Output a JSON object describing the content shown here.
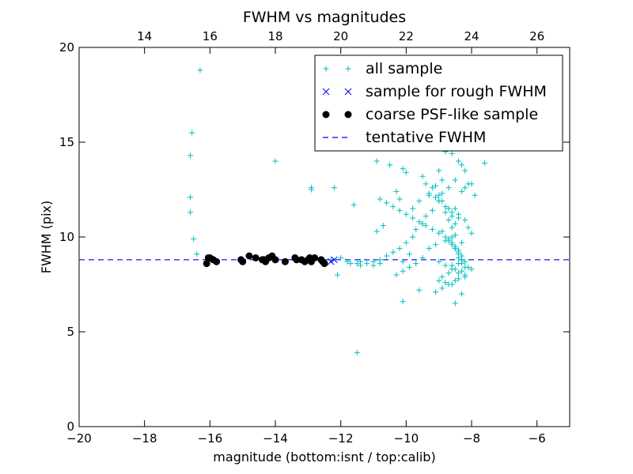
{
  "chart_data": {
    "type": "scatter",
    "title": "FWHM vs magnitudes",
    "xlabel": "magnitude (bottom:isnt / top:calib)",
    "ylabel": "FWHM (pix)",
    "xlim": [
      -20,
      -5
    ],
    "ylim": [
      0,
      20
    ],
    "xticks": [
      "−20",
      "−18",
      "−16",
      "−14",
      "−12",
      "−10",
      "−8",
      "−6"
    ],
    "yticks": [
      "0",
      "5",
      "10",
      "15",
      "20"
    ],
    "top_axis": {
      "offset": 32.0,
      "ticks": [
        "14",
        "16",
        "18",
        "20",
        "22",
        "24",
        "26"
      ]
    },
    "grid": false,
    "legend_position": "upper-right",
    "series": [
      {
        "name": "all sample",
        "marker": "plus",
        "color": "#00bfbf",
        "x": [
          -16.3,
          -16.55,
          -16.6,
          -16.6,
          -16.6,
          -16.5,
          -16.4,
          -14.0,
          -12.9,
          -12.9,
          -12.2,
          -11.6,
          -11.5,
          -12.1,
          -11.7,
          -11.4,
          -11.0,
          -10.8,
          -10.9,
          -10.5,
          -10.1,
          -10.0,
          -10.3,
          -10.2,
          -9.8,
          -9.5,
          -9.4,
          -9.0,
          -8.9,
          -9.3,
          -9.6,
          -9.1,
          -8.8,
          -8.7,
          -8.6,
          -8.4,
          -8.3,
          -8.2,
          -8.0,
          -7.9,
          -7.6,
          -8.5,
          -8.7,
          -8.9,
          -9.0,
          -9.2,
          -9.4,
          -9.5,
          -9.7,
          -9.8,
          -10.0,
          -10.2,
          -10.4,
          -10.6,
          -10.8,
          -11.0,
          -11.2,
          -11.4,
          -10.9,
          -10.7,
          -8.5,
          -8.4,
          -8.2,
          -8.1,
          -8.0,
          -8.6,
          -8.8,
          -9.1,
          -9.3,
          -9.9,
          -11.8,
          -12.0,
          -12.3,
          -10.1,
          -9.6,
          -8.3,
          -8.5,
          -8.6,
          -8.4,
          -8.2,
          -8.3,
          -8.5,
          -8.7,
          -8.9,
          -9.0,
          -8.8,
          -8.6,
          -8.4,
          -8.2,
          -8.1,
          -8.0,
          -8.3,
          -8.4,
          -8.5,
          -8.6,
          -8.7,
          -8.8,
          -9.0,
          -9.2,
          -9.4,
          -9.6,
          -9.8,
          -10.0,
          -10.2,
          -10.4,
          -10.6,
          -10.8,
          -8.3,
          -8.2,
          -8.1,
          -8.4,
          -8.6,
          -8.8,
          -9.0,
          -9.1,
          -9.3,
          -8.5,
          -8.7,
          -8.9,
          -8.4,
          -8.3,
          -8.2,
          -8.5,
          -8.6,
          -8.7,
          -8.9,
          -9.0,
          -9.2,
          -8.4,
          -8.3,
          -8.5,
          -8.6,
          -8.7,
          -8.8,
          -9.5,
          -9.7,
          -9.9,
          -10.1,
          -10.3,
          -9.0,
          -8.8,
          -8.6,
          -8.4,
          -8.2,
          -8.5,
          -8.7,
          -8.9,
          -9.1,
          -8.3,
          -8.4,
          -8.5,
          -8.6,
          -10.1,
          -11.5
        ],
        "y": [
          18.8,
          15.5,
          14.3,
          12.1,
          11.3,
          9.9,
          9.1,
          14.0,
          12.5,
          12.6,
          12.6,
          11.7,
          3.9,
          8.0,
          8.6,
          8.7,
          8.5,
          8.6,
          14.0,
          13.8,
          13.6,
          13.4,
          12.4,
          12.0,
          11.5,
          13.2,
          12.8,
          13.5,
          13.0,
          12.2,
          11.9,
          12.7,
          14.5,
          14.7,
          14.4,
          14.0,
          13.8,
          13.5,
          12.8,
          12.2,
          13.9,
          13.0,
          12.6,
          12.3,
          11.9,
          11.4,
          11.1,
          10.7,
          10.4,
          10.0,
          9.7,
          9.4,
          9.2,
          9.0,
          8.8,
          8.7,
          8.6,
          8.5,
          10.3,
          10.6,
          11.5,
          11.2,
          10.9,
          10.5,
          10.2,
          10.0,
          9.8,
          9.6,
          9.4,
          9.1,
          8.7,
          8.9,
          8.8,
          6.6,
          7.2,
          7.0,
          6.5,
          7.5,
          7.8,
          8.0,
          8.2,
          8.3,
          8.1,
          7.9,
          7.7,
          7.6,
          8.5,
          8.6,
          8.7,
          8.4,
          8.3,
          9.0,
          9.2,
          9.4,
          9.6,
          9.8,
          10.0,
          10.2,
          10.4,
          10.6,
          10.8,
          11.0,
          11.2,
          11.4,
          11.6,
          11.8,
          12.0,
          12.4,
          12.6,
          12.8,
          11.0,
          11.3,
          11.6,
          11.9,
          12.1,
          12.3,
          9.5,
          9.9,
          10.3,
          8.9,
          8.6,
          8.4,
          10.7,
          11.1,
          11.5,
          11.9,
          12.2,
          12.6,
          9.3,
          9.7,
          10.1,
          10.5,
          10.9,
          11.3,
          8.9,
          8.6,
          8.4,
          8.2,
          8.0,
          8.7,
          8.5,
          8.3,
          8.1,
          7.9,
          7.7,
          7.5,
          7.3,
          7.1,
          8.8,
          9.1,
          9.4,
          9.7,
          8.7,
          8.6
        ]
      },
      {
        "name": "sample for rough FWHM",
        "marker": "x",
        "color": "#0000ff",
        "x": [
          -12.2,
          -12.3
        ],
        "y": [
          8.8,
          8.7
        ]
      },
      {
        "name": "coarse PSF-like sample",
        "marker": "circle",
        "color": "#000000",
        "x": [
          -16.1,
          -16.0,
          -15.9,
          -15.8,
          -15.0,
          -14.8,
          -14.6,
          -14.4,
          -14.3,
          -14.2,
          -14.1,
          -14.0,
          -13.7,
          -13.4,
          -13.2,
          -13.1,
          -13.0,
          -12.9,
          -12.8,
          -12.6,
          -12.5,
          -16.05,
          -15.05,
          -14.35,
          -13.35,
          -12.95,
          -12.55
        ],
        "y": [
          8.6,
          8.9,
          8.8,
          8.7,
          8.7,
          9.0,
          8.9,
          8.8,
          8.7,
          8.9,
          9.0,
          8.8,
          8.7,
          8.9,
          8.8,
          8.7,
          8.8,
          8.7,
          8.9,
          8.8,
          8.6,
          8.9,
          8.8,
          8.8,
          8.8,
          8.9,
          8.7
        ]
      }
    ],
    "reference_lines": [
      {
        "name": "tentative FWHM",
        "style": "dashed",
        "color": "#0000ff",
        "y": 8.8
      }
    ]
  }
}
